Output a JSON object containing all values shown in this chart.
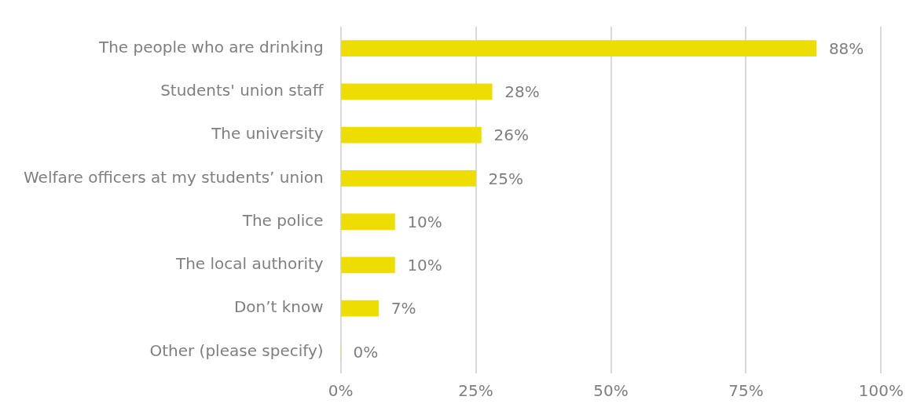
{
  "chart_data": {
    "type": "bar",
    "orientation": "horizontal",
    "categories": [
      "The people who are drinking",
      "Students' union staff",
      "The university",
      "Welfare officers at my students’ union",
      "The police",
      "The local authority",
      "Don’t know",
      "Other (please specify)"
    ],
    "values": [
      88,
      28,
      26,
      25,
      10,
      10,
      7,
      0
    ],
    "value_labels": [
      "88%",
      "28%",
      "26%",
      "25%",
      "10%",
      "10%",
      "7%",
      "0%"
    ],
    "color": "#eedd00",
    "xlim": [
      0,
      100
    ],
    "xticks": [
      {
        "value": 0,
        "label": "0%"
      },
      {
        "value": 25,
        "label": "25%"
      },
      {
        "value": 50,
        "label": "50%"
      },
      {
        "value": 75,
        "label": "75%"
      },
      {
        "value": 100,
        "label": "100%"
      }
    ],
    "grid": "x",
    "legend": false
  }
}
